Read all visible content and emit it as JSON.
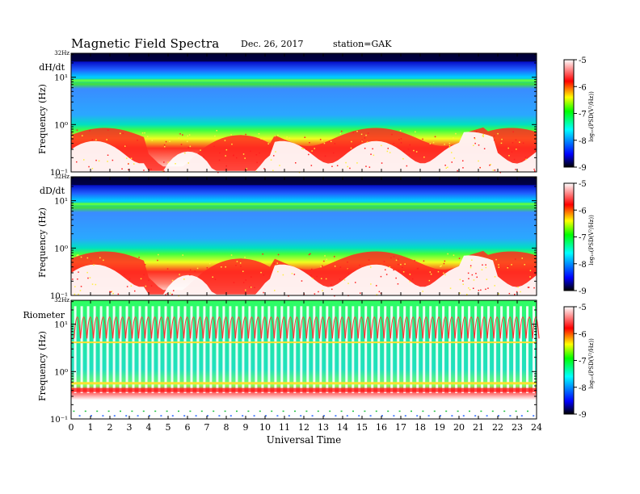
{
  "header": {
    "title": "Magnetic  Field  Spectra",
    "date": "Dec. 26, 2017",
    "station": "station=GAK"
  },
  "chart_data": [
    {
      "type": "heatmap",
      "panel_label": "dH/dt",
      "ylabel": "Frequency  (Hz)",
      "top_label": "32Hz",
      "yscale": "log",
      "ylim": [
        0.1,
        32
      ],
      "ytick_labels": [
        "10⁻¹",
        "10⁰",
        "10¹"
      ],
      "xlim": [
        0,
        24
      ],
      "xticks": [
        0,
        1,
        2,
        3,
        4,
        5,
        6,
        7,
        8,
        9,
        10,
        11,
        12,
        13,
        14,
        15,
        16,
        17,
        18,
        19,
        20,
        21,
        22,
        23,
        24
      ],
      "colorbar": {
        "label": "log₁₀(PSD(V²/Hz))",
        "range": [
          -9,
          -5
        ],
        "ticks": [
          -5,
          -6,
          -7,
          -8,
          -9
        ],
        "colors": [
          "#000000",
          "#0000ff",
          "#00ffff",
          "#00ff00",
          "#ffff00",
          "#ff0000",
          "#ffffff"
        ]
      }
    },
    {
      "type": "heatmap",
      "panel_label": "dD/dt",
      "ylabel": "Frequency  (Hz)",
      "top_label": "32Hz",
      "yscale": "log",
      "ylim": [
        0.1,
        32
      ],
      "ytick_labels": [
        "10⁻¹",
        "10⁰",
        "10¹"
      ],
      "xlim": [
        0,
        24
      ],
      "xticks": [
        0,
        1,
        2,
        3,
        4,
        5,
        6,
        7,
        8,
        9,
        10,
        11,
        12,
        13,
        14,
        15,
        16,
        17,
        18,
        19,
        20,
        21,
        22,
        23,
        24
      ],
      "colorbar": {
        "label": "log₁₀(PSD(V²/Hz))",
        "range": [
          -9,
          -5
        ],
        "ticks": [
          -5,
          -6,
          -7,
          -8,
          -9
        ]
      }
    },
    {
      "type": "heatmap",
      "panel_label": "Riometer",
      "ylabel": "Frequency  (Hz)",
      "top_label": "32Hz",
      "yscale": "log",
      "ylim": [
        0.1,
        32
      ],
      "ytick_labels": [
        "10⁻¹",
        "10⁰",
        "10¹"
      ],
      "xlabel": "Universal  Time",
      "xlim": [
        0,
        24
      ],
      "xticks": [
        0,
        1,
        2,
        3,
        4,
        5,
        6,
        7,
        8,
        9,
        10,
        11,
        12,
        13,
        14,
        15,
        16,
        17,
        18,
        19,
        20,
        21,
        22,
        23,
        24
      ],
      "colorbar": {
        "label": "log₁₀(PSD(V²/Hz))",
        "range": [
          -9,
          -5
        ],
        "ticks": [
          -5,
          -6,
          -7,
          -8,
          -9
        ]
      }
    }
  ]
}
